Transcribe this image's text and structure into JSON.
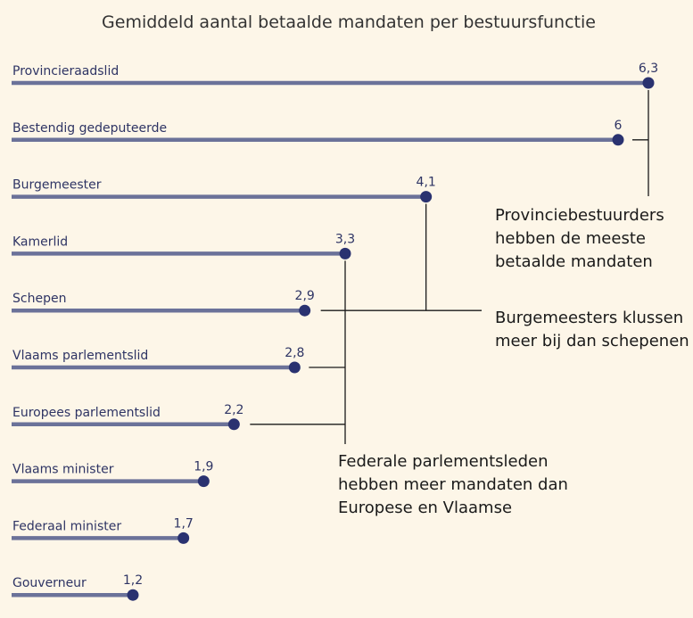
{
  "chart_data": {
    "type": "bar",
    "title": "Gemiddeld aantal betaalde mandaten per bestuursfunctie",
    "orientation": "horizontal",
    "style": "lollipop",
    "categories": [
      "Provincieraadslid",
      "Bestendig gedeputeerde",
      "Burgemeester",
      "Kamerlid",
      "Schepen",
      "Vlaams parlementslid",
      "Europees parlementslid",
      "Vlaams minister",
      "Federaal minister",
      "Gouverneur"
    ],
    "values": [
      6.3,
      6,
      4.1,
      3.3,
      2.9,
      2.8,
      2.2,
      1.9,
      1.7,
      1.2
    ],
    "value_labels": [
      "6,3",
      "6",
      "4,1",
      "3,3",
      "2,9",
      "2,8",
      "2,2",
      "1,9",
      "1,7",
      "1,2"
    ],
    "xlim": [
      0,
      6.3
    ],
    "grid": false,
    "annotations": [
      {
        "text_lines": [
          "Provinciebestuurders",
          "hebben de meeste",
          "betaalde mandaten"
        ],
        "groups": [
          0,
          1
        ]
      },
      {
        "text_lines": [
          "Burgemeesters klussen",
          "meer bij dan schepenen"
        ],
        "groups": [
          2,
          4
        ]
      },
      {
        "text_lines": [
          "Federale parlementsleden",
          "hebben meer mandaten dan",
          "Europese en Vlaamse"
        ],
        "groups": [
          3,
          5,
          6
        ]
      }
    ],
    "colors": {
      "bar": "#6b7299",
      "dot": "#2a3270",
      "label": "#2e3464",
      "annotation_line": "#1a1a1a",
      "background": "#fdf6e8"
    }
  }
}
